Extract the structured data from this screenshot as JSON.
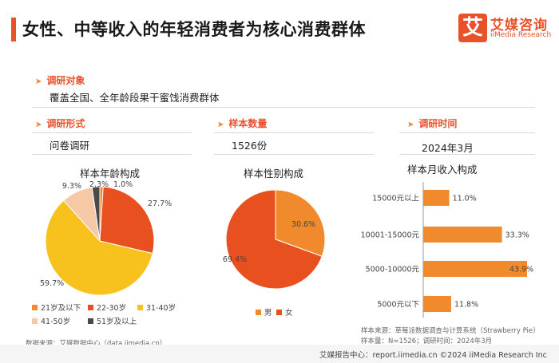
{
  "header": {
    "title": "女性、中等收入的年轻消费者为核心消费群体",
    "logo_mark": "艾",
    "logo_cn": "艾媒咨询",
    "logo_en": "iiMedia Research"
  },
  "survey": {
    "object_label": "调研对象",
    "object_value": "覆盖全国、全年龄段果干蜜饯消费群体",
    "form_label": "调研形式",
    "form_value": "问卷调研",
    "sample_label": "样本数量",
    "sample_value": "1526份",
    "time_label": "调研时间",
    "time_value": "2024年3月"
  },
  "age_chart": {
    "title": "样本年龄构成",
    "legend": [
      {
        "label": "21岁及以下",
        "color": "#f08a2c"
      },
      {
        "label": "22-30岁",
        "color": "#e8501f"
      },
      {
        "label": "31-40岁",
        "color": "#f7c21d"
      },
      {
        "label": "41-50岁",
        "color": "#f6c9a6"
      },
      {
        "label": "51岁及以上",
        "color": "#4a4a4a"
      }
    ]
  },
  "gender_chart": {
    "title": "样本性别构成",
    "legend": [
      {
        "label": "男",
        "color": "#f08a2c"
      },
      {
        "label": "女",
        "color": "#e8501f"
      }
    ]
  },
  "income_chart": {
    "title": "样本月收入构成"
  },
  "chart_data": [
    {
      "type": "pie",
      "title": "样本年龄构成",
      "categories": [
        "21岁及以下",
        "22-30岁",
        "31-40岁",
        "41-50岁",
        "51岁及以上"
      ],
      "values": [
        1.0,
        27.7,
        59.7,
        9.3,
        2.3
      ],
      "value_labels": [
        "1.0%",
        "27.7%",
        "59.7%",
        "9.3%",
        "2.3%"
      ],
      "unit": "%",
      "legend_position": "bottom"
    },
    {
      "type": "pie",
      "title": "样本性别构成",
      "categories": [
        "男",
        "女"
      ],
      "values": [
        30.6,
        69.4
      ],
      "value_labels": [
        "30.6%",
        "69.4%"
      ],
      "unit": "%",
      "legend_position": "bottom"
    },
    {
      "type": "bar",
      "orientation": "horizontal",
      "title": "样本月收入构成",
      "categories": [
        "15000元以上",
        "10001-15000元",
        "5000-10000元",
        "5000元以下"
      ],
      "values": [
        11.0,
        33.3,
        43.9,
        11.8
      ],
      "value_labels": [
        "11.0%",
        "33.3%",
        "43.9%",
        "11.8%"
      ],
      "unit": "%",
      "color": "#f08a2c"
    }
  ],
  "footnotes": {
    "left_source": "数据来源：艾媒数据中心（data.iimedia.cn）",
    "right_source": "样本来源：草莓派数据调查与计算系统（Strawberry Pie）",
    "right_sample": "样本量：N=1526；调研时间：2024年3月"
  },
  "footer": {
    "text": "艾媒报告中心：report.iimedia.cn    ©2024  iiMedia Research Inc"
  }
}
